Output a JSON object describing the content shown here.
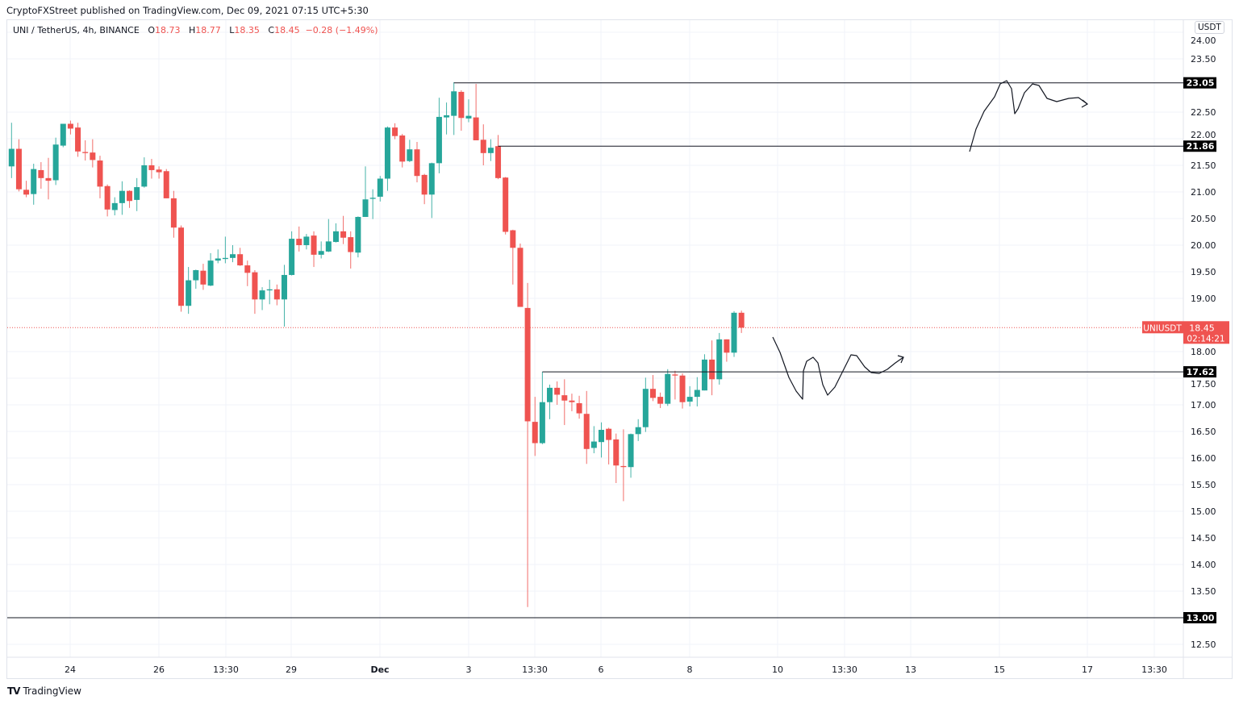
{
  "published": "CryptoFXStreet published on TradingView.com, Dec 09, 2021 07:15 UTC+5:30",
  "legend": {
    "symbol": "UNI / TetherUS, 4h, BINANCE",
    "o_label": "O",
    "o": "18.73",
    "h_label": "H",
    "h": "18.77",
    "l_label": "L",
    "l": "18.35",
    "c_label": "C",
    "c": "18.45",
    "change": "−0.28 (−1.49%)"
  },
  "currency_badge": "USDT",
  "footer": {
    "logo": "TradingView",
    "brand": "TradingView"
  },
  "colors": {
    "up": "#26a69a",
    "down": "#ef5350",
    "level_line": "#131722",
    "grid": "#f0f3fa",
    "last_price": "#ef5350"
  },
  "chart_data": {
    "type": "candlestick",
    "symbol": "UNIUSDT",
    "timeframe": "4h",
    "ylim": [
      12.3,
      24.2
    ],
    "grid": true,
    "price_ticks": [
      "24.00",
      "23.50",
      "22.50",
      "22.00",
      "21.50",
      "21.00",
      "20.50",
      "20.00",
      "19.50",
      "19.00",
      "18.00",
      "17.50",
      "17.00",
      "16.50",
      "16.00",
      "15.50",
      "15.00",
      "14.50",
      "14.00",
      "13.50",
      "12.50"
    ],
    "time_ticks": [
      "24",
      "26",
      "13:30",
      "29",
      "Dec",
      "3",
      "13:30",
      "6",
      "8",
      "10",
      "13:30",
      "13",
      "15",
      "17",
      "13:30"
    ],
    "candles_ohlc": [
      [
        21.48,
        22.3,
        21.26,
        21.81
      ],
      [
        21.81,
        21.99,
        21.01,
        21.05
      ],
      [
        21.04,
        21.21,
        20.9,
        20.95
      ],
      [
        20.96,
        21.53,
        20.76,
        21.43
      ],
      [
        21.41,
        21.56,
        21.06,
        21.26
      ],
      [
        21.26,
        21.64,
        20.86,
        21.21
      ],
      [
        21.22,
        22.02,
        21.13,
        21.89
      ],
      [
        21.87,
        22.28,
        21.84,
        22.28
      ],
      [
        22.28,
        22.34,
        22.08,
        22.19
      ],
      [
        22.21,
        22.3,
        21.66,
        21.76
      ],
      [
        21.75,
        21.97,
        21.59,
        21.73
      ],
      [
        21.74,
        21.99,
        21.46,
        21.6
      ],
      [
        21.59,
        21.68,
        20.88,
        21.1
      ],
      [
        21.11,
        21.14,
        20.54,
        20.67
      ],
      [
        20.66,
        20.9,
        20.56,
        20.79
      ],
      [
        20.79,
        21.2,
        20.57,
        21.02
      ],
      [
        21.02,
        21.03,
        20.7,
        20.83
      ],
      [
        20.85,
        21.26,
        20.64,
        21.09
      ],
      [
        21.1,
        21.65,
        21.08,
        21.5
      ],
      [
        21.5,
        21.62,
        21.25,
        21.41
      ],
      [
        21.42,
        21.48,
        21.25,
        21.37
      ],
      [
        21.39,
        21.43,
        20.88,
        20.88
      ],
      [
        20.88,
        21.02,
        20.14,
        20.33
      ],
      [
        20.33,
        20.37,
        18.75,
        18.86
      ],
      [
        18.86,
        19.59,
        18.71,
        19.34
      ],
      [
        19.34,
        19.54,
        19.18,
        19.53
      ],
      [
        19.52,
        19.65,
        19.16,
        19.26
      ],
      [
        19.24,
        19.85,
        19.23,
        19.71
      ],
      [
        19.71,
        19.92,
        19.66,
        19.75
      ],
      [
        19.74,
        20.16,
        19.66,
        19.76
      ],
      [
        19.76,
        20.0,
        19.68,
        19.83
      ],
      [
        19.83,
        19.95,
        19.61,
        19.62
      ],
      [
        19.62,
        19.71,
        19.23,
        19.48
      ],
      [
        19.49,
        19.53,
        18.71,
        18.98
      ],
      [
        18.98,
        19.21,
        18.78,
        19.15
      ],
      [
        19.15,
        19.35,
        18.89,
        19.17
      ],
      [
        19.17,
        19.26,
        18.87,
        18.98
      ],
      [
        18.98,
        19.63,
        18.47,
        19.44
      ],
      [
        19.44,
        20.26,
        19.43,
        20.12
      ],
      [
        20.12,
        20.35,
        19.88,
        20.0
      ],
      [
        20.0,
        20.21,
        19.92,
        20.16
      ],
      [
        20.18,
        20.26,
        19.59,
        19.82
      ],
      [
        19.82,
        20.07,
        19.75,
        19.89
      ],
      [
        19.88,
        20.49,
        19.87,
        20.07
      ],
      [
        20.06,
        20.41,
        20.05,
        20.26
      ],
      [
        20.26,
        20.55,
        20.02,
        20.14
      ],
      [
        20.15,
        20.26,
        19.56,
        19.87
      ],
      [
        19.86,
        20.54,
        19.77,
        20.53
      ],
      [
        20.53,
        21.48,
        20.53,
        20.86
      ],
      [
        20.87,
        21.05,
        20.49,
        20.89
      ],
      [
        20.91,
        21.3,
        20.82,
        21.25
      ],
      [
        21.25,
        22.23,
        21.02,
        22.21
      ],
      [
        22.21,
        22.29,
        21.99,
        22.05
      ],
      [
        22.06,
        22.09,
        21.46,
        21.57
      ],
      [
        21.58,
        21.98,
        21.56,
        21.8
      ],
      [
        21.8,
        21.94,
        21.18,
        21.3
      ],
      [
        21.32,
        21.34,
        20.77,
        20.95
      ],
      [
        20.95,
        21.55,
        20.51,
        21.54
      ],
      [
        21.54,
        22.77,
        21.35,
        22.41
      ],
      [
        22.4,
        22.68,
        22.08,
        22.44
      ],
      [
        22.43,
        23.06,
        22.07,
        22.89
      ],
      [
        22.88,
        22.91,
        22.15,
        22.39
      ],
      [
        22.38,
        22.74,
        22.31,
        22.43
      ],
      [
        22.4,
        23.03,
        21.97,
        21.97
      ],
      [
        21.98,
        22.27,
        21.5,
        21.73
      ],
      [
        21.73,
        21.99,
        21.58,
        21.83
      ],
      [
        21.86,
        22.07,
        21.24,
        21.26
      ],
      [
        21.27,
        21.28,
        20.2,
        20.25
      ],
      [
        20.28,
        20.29,
        19.26,
        19.95
      ],
      [
        19.95,
        20.03,
        18.84,
        18.84
      ],
      [
        18.82,
        19.29,
        13.2,
        16.69
      ],
      [
        16.68,
        17.15,
        16.04,
        16.28
      ],
      [
        16.28,
        17.62,
        16.26,
        17.05
      ],
      [
        17.05,
        17.38,
        16.73,
        17.32
      ],
      [
        17.32,
        17.44,
        17.0,
        17.19
      ],
      [
        17.18,
        17.48,
        16.62,
        17.08
      ],
      [
        17.08,
        17.21,
        16.88,
        17.05
      ],
      [
        17.03,
        17.17,
        16.74,
        16.84
      ],
      [
        16.83,
        17.26,
        15.89,
        16.17
      ],
      [
        16.19,
        16.6,
        16.09,
        16.31
      ],
      [
        16.3,
        16.67,
        16.01,
        16.53
      ],
      [
        16.55,
        16.57,
        15.88,
        16.34
      ],
      [
        16.35,
        16.46,
        15.53,
        15.86
      ],
      [
        15.85,
        16.54,
        15.19,
        15.83
      ],
      [
        15.83,
        16.46,
        15.63,
        16.45
      ],
      [
        16.45,
        16.73,
        16.32,
        16.58
      ],
      [
        16.58,
        17.51,
        16.49,
        17.3
      ],
      [
        17.3,
        17.56,
        17.07,
        17.13
      ],
      [
        17.15,
        17.23,
        16.94,
        17.02
      ],
      [
        17.02,
        17.67,
        16.98,
        17.58
      ],
      [
        17.57,
        17.64,
        17.1,
        17.55
      ],
      [
        17.55,
        17.59,
        16.93,
        17.05
      ],
      [
        17.06,
        17.35,
        16.97,
        17.15
      ],
      [
        17.15,
        17.52,
        16.97,
        17.28
      ],
      [
        17.27,
        17.95,
        17.27,
        17.85
      ],
      [
        17.85,
        18.21,
        17.18,
        17.48
      ],
      [
        17.48,
        18.35,
        17.38,
        18.23
      ],
      [
        18.23,
        18.23,
        17.81,
        17.98
      ],
      [
        17.98,
        18.76,
        17.9,
        18.73
      ],
      [
        18.73,
        18.77,
        18.35,
        18.45
      ]
    ],
    "horizontal_levels": [
      {
        "price": 23.05,
        "label": "23.05",
        "from_bar": 60
      },
      {
        "price": 21.86,
        "label": "21.86",
        "from_bar": 66
      },
      {
        "price": 17.62,
        "label": "17.62",
        "from_bar": 72
      },
      {
        "price": 13.0,
        "label": "13.00",
        "from_bar": -1
      }
    ],
    "last_price": {
      "symbol": "UNIUSDT",
      "price": 18.45,
      "label": "18.45",
      "countdown": "02:14:21"
    }
  }
}
